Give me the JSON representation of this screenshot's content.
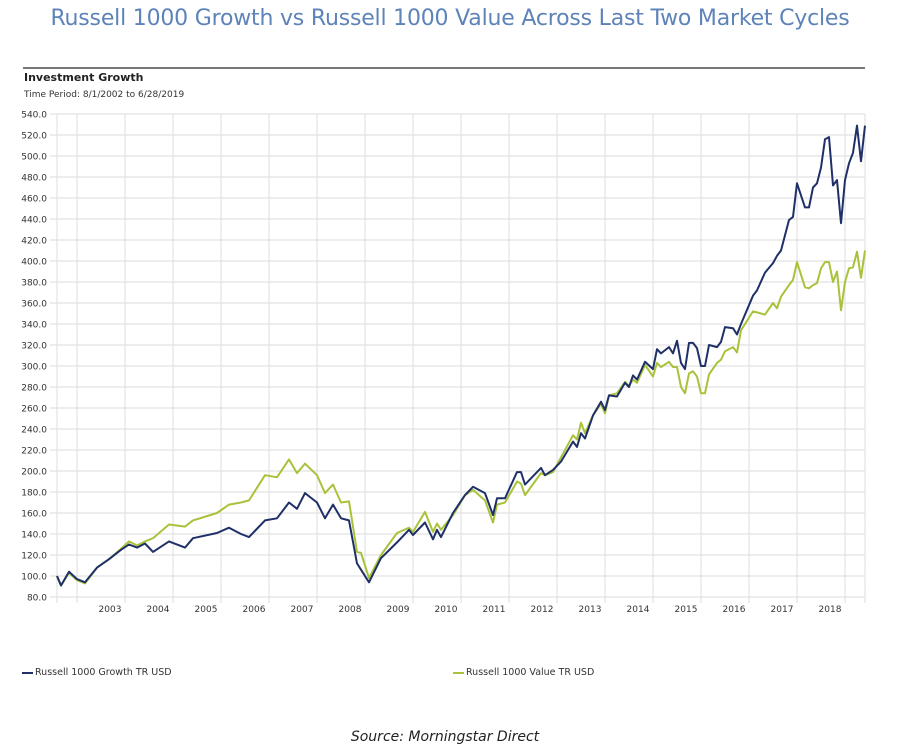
{
  "title": "Russell 1000 Growth vs Russell 1000 Value Across Last Two Market Cycles",
  "source": "Source: Morningstar Direct",
  "chart_data": {
    "type": "line",
    "title": "Investment Growth",
    "subtitle": "Time Period: 8/1/2002 to 6/28/2019",
    "xlabel": "",
    "ylabel": "",
    "ylim": [
      80,
      540
    ],
    "xlim": [
      "2002-08",
      "2019-06"
    ],
    "grid": true,
    "legend": "bottom",
    "y_ticks": [
      "540.0",
      "520.0",
      "500.0",
      "480.0",
      "460.0",
      "440.0",
      "420.0",
      "400.0",
      "380.0",
      "360.0",
      "340.0",
      "320.0",
      "300.0",
      "280.0",
      "260.0",
      "240.0",
      "220.0",
      "200.0",
      "180.0",
      "160.0",
      "140.0",
      "120.0",
      "100.0",
      "80.0"
    ],
    "x_ticks": [
      "2003",
      "2004",
      "2005",
      "2006",
      "2007",
      "2008",
      "2009",
      "2010",
      "2011",
      "2012",
      "2013",
      "2014",
      "2015",
      "2016",
      "2017",
      "2018"
    ],
    "x": [
      "2002-08",
      "2002-09",
      "2002-11",
      "2003-01",
      "2003-03",
      "2003-06",
      "2003-09",
      "2003-12",
      "2004-02",
      "2004-04",
      "2004-06",
      "2004-08",
      "2004-12",
      "2005-04",
      "2005-06",
      "2005-12",
      "2006-03",
      "2006-06",
      "2006-08",
      "2006-12",
      "2007-03",
      "2007-06",
      "2007-08",
      "2007-10",
      "2008-01",
      "2008-03",
      "2008-05",
      "2008-07",
      "2008-09",
      "2008-11",
      "2008-12",
      "2009-02",
      "2009-05",
      "2009-09",
      "2009-12",
      "2010-01",
      "2010-04",
      "2010-06",
      "2010-07",
      "2010-08",
      "2010-11",
      "2011-02",
      "2011-04",
      "2011-07",
      "2011-09",
      "2011-10",
      "2011-12",
      "2012-03",
      "2012-04",
      "2012-05",
      "2012-09",
      "2012-10",
      "2012-12",
      "2013-02",
      "2013-05",
      "2013-06",
      "2013-07",
      "2013-08",
      "2013-10",
      "2013-12",
      "2014-01",
      "2014-02",
      "2014-04",
      "2014-06",
      "2014-07",
      "2014-08",
      "2014-09",
      "2014-11",
      "2015-01",
      "2015-02",
      "2015-03",
      "2015-05",
      "2015-06",
      "2015-07",
      "2015-08",
      "2015-09",
      "2015-10",
      "2015-11",
      "2015-12",
      "2016-01",
      "2016-02",
      "2016-03",
      "2016-05",
      "2016-06",
      "2016-07",
      "2016-09",
      "2016-10",
      "2016-11",
      "2017-02",
      "2017-03",
      "2017-05",
      "2017-07",
      "2017-08",
      "2017-09",
      "2017-11",
      "2017-12",
      "2018-01",
      "2018-03",
      "2018-04",
      "2018-05",
      "2018-06",
      "2018-07",
      "2018-08",
      "2018-09",
      "2018-10",
      "2018-11",
      "2018-12",
      "2019-01",
      "2019-02",
      "2019-03",
      "2019-04",
      "2019-05",
      "2019-06"
    ],
    "series": [
      {
        "name": "Russell 1000 Growth TR USD",
        "color": "#1f3068",
        "values": [
          100,
          91,
          104,
          97,
          94,
          108,
          116,
          125,
          130,
          127,
          131,
          123,
          133,
          127,
          136,
          141,
          146,
          140,
          137,
          153,
          155,
          170,
          164,
          179,
          170,
          155,
          168,
          155,
          153,
          112,
          106,
          94,
          117,
          132,
          144,
          139,
          151,
          135,
          144,
          137,
          160,
          177,
          185,
          179,
          158,
          174,
          174,
          199,
          199,
          187,
          203,
          196,
          201,
          209,
          228,
          223,
          236,
          231,
          253,
          266,
          258,
          272,
          271,
          284,
          280,
          291,
          287,
          304,
          297,
          316,
          312,
          318,
          312,
          324,
          303,
          297,
          322,
          322,
          317,
          300,
          300,
          320,
          318,
          323,
          337,
          336,
          330,
          340,
          367,
          372,
          389,
          398,
          405,
          410,
          439,
          442,
          474,
          451,
          451,
          470,
          474,
          489,
          516,
          518,
          472,
          477,
          436,
          477,
          493,
          503,
          529,
          495,
          529
        ]
      },
      {
        "name": "Russell 1000 Value TR USD",
        "color": "#a8c23a",
        "values": [
          100,
          91,
          103,
          96,
          93,
          108,
          116,
          126,
          133,
          129,
          133,
          136,
          149,
          147,
          153,
          160,
          168,
          170,
          172,
          196,
          194,
          211,
          198,
          207,
          196,
          179,
          187,
          170,
          171,
          123,
          122,
          98,
          120,
          141,
          146,
          142,
          161,
          142,
          150,
          144,
          158,
          177,
          182,
          172,
          151,
          168,
          170,
          190,
          188,
          177,
          198,
          196,
          199,
          213,
          234,
          230,
          246,
          236,
          253,
          264,
          255,
          272,
          274,
          285,
          281,
          287,
          284,
          301,
          290,
          303,
          299,
          304,
          299,
          299,
          280,
          274,
          293,
          295,
          290,
          274,
          274,
          292,
          303,
          306,
          314,
          318,
          313,
          334,
          352,
          351,
          349,
          360,
          355,
          366,
          377,
          382,
          399,
          375,
          374,
          377,
          379,
          393,
          399,
          399,
          380,
          390,
          353,
          380,
          393,
          394,
          409,
          384,
          410
        ]
      }
    ]
  }
}
